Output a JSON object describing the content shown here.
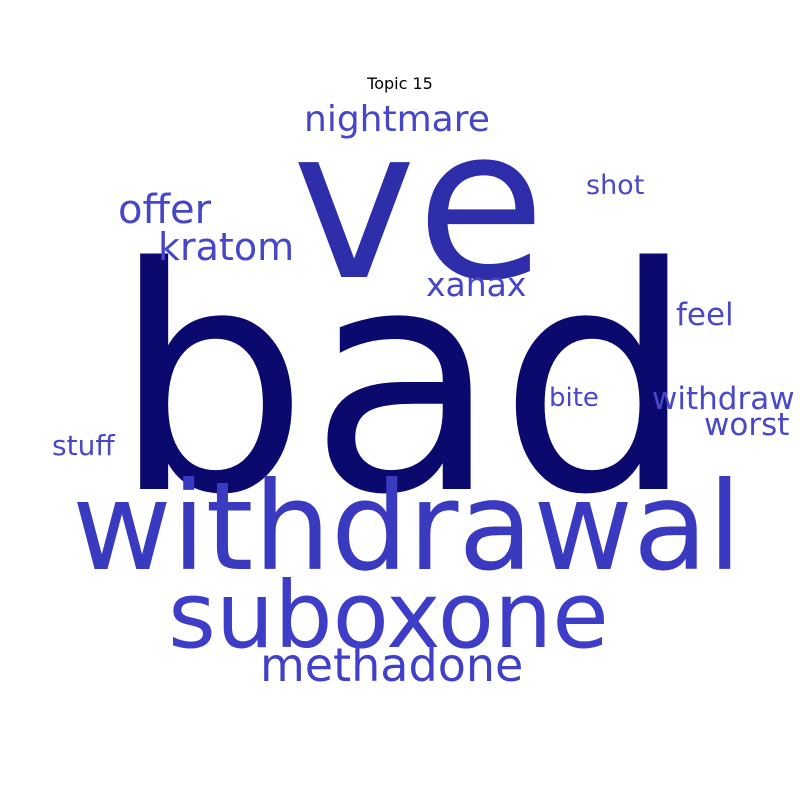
{
  "title": "Topic 15",
  "words": [
    {
      "text": "bad",
      "weight": 1.0,
      "color": "#0a0a6e"
    },
    {
      "text": "ve",
      "weight": 0.55,
      "color": "#2e2eaa"
    },
    {
      "text": "withdrawal",
      "weight": 0.4,
      "color": "#3a3ac0"
    },
    {
      "text": "suboxone",
      "weight": 0.32,
      "color": "#3d3dc8"
    },
    {
      "text": "methadone",
      "weight": 0.16,
      "color": "#4040c8"
    },
    {
      "text": "nightmare",
      "weight": 0.13,
      "color": "#4646c8"
    },
    {
      "text": "offer",
      "weight": 0.14,
      "color": "#4646c8"
    },
    {
      "text": "kratom",
      "weight": 0.13,
      "color": "#4646c8"
    },
    {
      "text": "xanax",
      "weight": 0.11,
      "color": "#4646c8"
    },
    {
      "text": "feel",
      "weight": 0.1,
      "color": "#4848c8"
    },
    {
      "text": "shot",
      "weight": 0.09,
      "color": "#4848c8"
    },
    {
      "text": "withdraw",
      "weight": 0.1,
      "color": "#4848c8"
    },
    {
      "text": "worst",
      "weight": 0.1,
      "color": "#4848c8"
    },
    {
      "text": "bite",
      "weight": 0.09,
      "color": "#4848c8"
    },
    {
      "text": "stuff",
      "weight": 0.09,
      "color": "#4848c8"
    }
  ]
}
